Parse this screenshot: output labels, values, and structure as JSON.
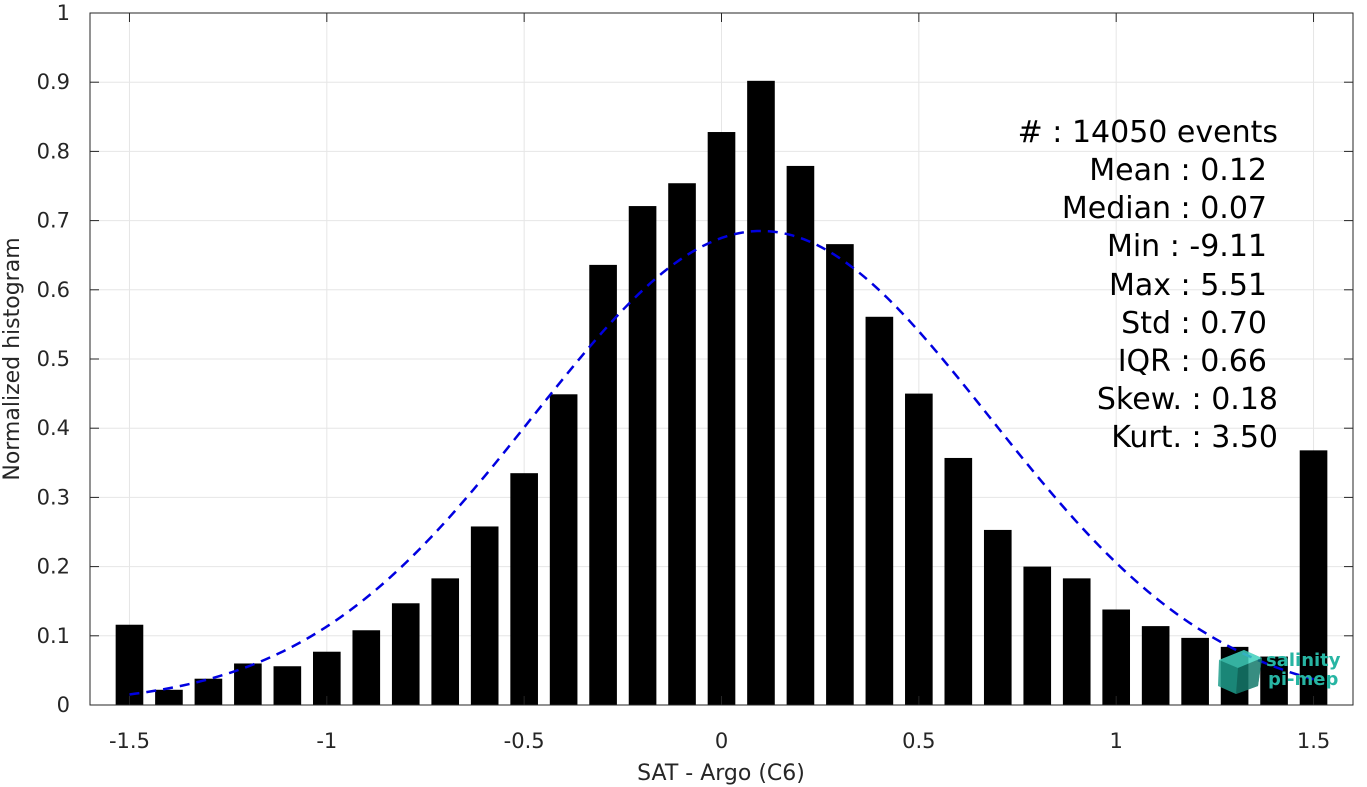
{
  "chart_data": {
    "type": "bar",
    "xlabel": "SAT - Argo (C6)",
    "ylabel": "Normalized histogram",
    "xlim": [
      -1.6,
      1.6
    ],
    "ylim": [
      0,
      1
    ],
    "x_ticks": [
      "-1.5",
      "-1",
      "-0.5",
      "0",
      "0.5",
      "1",
      "1.5"
    ],
    "x_tick_values": [
      -1.5,
      -1,
      -0.5,
      0,
      0.5,
      1,
      1.5
    ],
    "y_ticks": [
      "0",
      "0.1",
      "0.2",
      "0.3",
      "0.4",
      "0.5",
      "0.6",
      "0.7",
      "0.8",
      "0.9",
      "1"
    ],
    "y_tick_values": [
      0,
      0.1,
      0.2,
      0.3,
      0.4,
      0.5,
      0.6,
      0.7,
      0.8,
      0.9,
      1
    ],
    "grid": true,
    "bar_color": "#000000",
    "bars": {
      "x": [
        -1.5,
        -1.4,
        -1.3,
        -1.2,
        -1.1,
        -1.0,
        -0.9,
        -0.8,
        -0.7,
        -0.6,
        -0.5,
        -0.4,
        -0.3,
        -0.2,
        -0.1,
        0.0,
        0.1,
        0.2,
        0.3,
        0.4,
        0.5,
        0.6,
        0.7,
        0.8,
        0.9,
        1.0,
        1.1,
        1.2,
        1.3,
        1.4,
        1.5
      ],
      "values": [
        0.116,
        0.022,
        0.038,
        0.06,
        0.056,
        0.077,
        0.108,
        0.147,
        0.183,
        0.258,
        0.335,
        0.449,
        0.636,
        0.721,
        0.754,
        0.828,
        0.902,
        0.779,
        0.666,
        0.561,
        0.45,
        0.357,
        0.253,
        0.2,
        0.183,
        0.138,
        0.114,
        0.097,
        0.084,
        0.07,
        0.368
      ]
    },
    "fit_curve": {
      "style": "dashed",
      "color": "#0000e0",
      "distribution": "normal",
      "mean": 0.1,
      "peak": 0.685,
      "sigma": 0.58,
      "x_range": [
        -1.5,
        1.5
      ]
    },
    "annotations": [
      "#  : 14050 events",
      "Mean : 0.12",
      "Median : 0.07",
      "Min : -9.11",
      "Max : 5.51",
      "Std : 0.70",
      "IQR : 0.66",
      "Skew. : 0.18",
      "Kurt. : 3.50"
    ]
  },
  "logo": {
    "line1": "salinity",
    "line2": "pi-mep",
    "color": "#27b5a3"
  }
}
